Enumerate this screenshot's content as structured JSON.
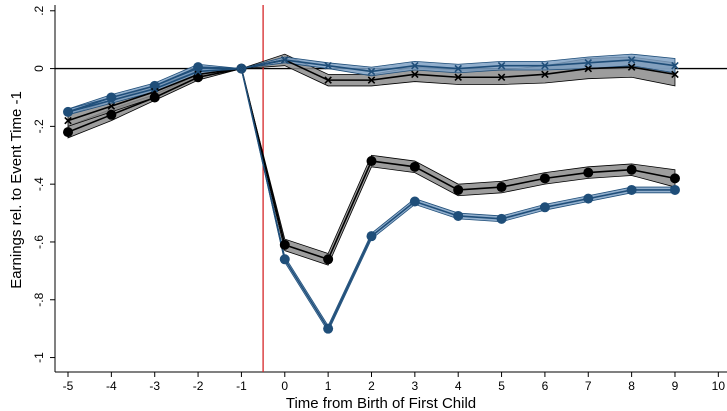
{
  "chart_data": {
    "type": "line",
    "title": "",
    "xlabel": "Time from Birth of First Child",
    "ylabel": "Earnings rel. to Event Time -1",
    "xlim": [
      -5.3,
      10.2
    ],
    "ylim": [
      -1.05,
      0.22
    ],
    "x_ticks": [
      -5,
      -4,
      -3,
      -2,
      -1,
      0,
      1,
      2,
      3,
      4,
      5,
      6,
      7,
      8,
      9,
      10
    ],
    "y_ticks": [
      0.2,
      0,
      -0.2,
      -0.4,
      -0.6,
      -0.8,
      -1
    ],
    "y_tick_labels": [
      ".2",
      "0",
      "-.2",
      "-.4",
      "-.6",
      "-.8",
      "-1"
    ],
    "grid": false,
    "legend": "none",
    "reference_lines": [
      {
        "orientation": "horizontal",
        "value": 0,
        "color": "#000000"
      },
      {
        "orientation": "vertical",
        "value": -0.5,
        "color": "#d62728"
      }
    ],
    "series": [
      {
        "marker": "circle",
        "color": "#000000",
        "band_color": "#8c8c8c",
        "x": [
          -5,
          -4,
          -3,
          -2,
          -1,
          0,
          1,
          2,
          3,
          4,
          5,
          6,
          7,
          8,
          9
        ],
        "y": [
          -0.22,
          -0.16,
          -0.1,
          -0.03,
          0,
          -0.61,
          -0.66,
          -0.32,
          -0.34,
          -0.42,
          -0.41,
          -0.38,
          -0.36,
          -0.35,
          -0.38
        ],
        "lower": [
          -0.24,
          -0.18,
          -0.11,
          -0.04,
          0,
          -0.63,
          -0.68,
          -0.34,
          -0.36,
          -0.44,
          -0.43,
          -0.4,
          -0.38,
          -0.37,
          -0.41
        ],
        "upper": [
          -0.2,
          -0.14,
          -0.09,
          -0.02,
          0,
          -0.59,
          -0.64,
          -0.3,
          -0.32,
          -0.4,
          -0.39,
          -0.36,
          -0.34,
          -0.33,
          -0.35
        ]
      },
      {
        "marker": "circle",
        "color": "#1f4e79",
        "band_color": "#7fa1c4",
        "x": [
          -5,
          -4,
          -3,
          -2,
          -1,
          0,
          1,
          2,
          3,
          4,
          5,
          6,
          7,
          8,
          9
        ],
        "y": [
          -0.15,
          -0.1,
          -0.06,
          0.005,
          0,
          -0.66,
          -0.9,
          -0.58,
          -0.46,
          -0.51,
          -0.52,
          -0.48,
          -0.45,
          -0.42,
          -0.42
        ],
        "lower": [
          -0.16,
          -0.11,
          -0.07,
          -0.005,
          0,
          -0.67,
          -0.91,
          -0.59,
          -0.47,
          -0.52,
          -0.53,
          -0.49,
          -0.46,
          -0.43,
          -0.43
        ],
        "upper": [
          -0.14,
          -0.09,
          -0.05,
          0.015,
          0,
          -0.65,
          -0.89,
          -0.57,
          -0.45,
          -0.5,
          -0.51,
          -0.47,
          -0.44,
          -0.41,
          -0.41
        ]
      },
      {
        "marker": "x",
        "color": "#000000",
        "band_color": "#8c8c8c",
        "x": [
          -5,
          -4,
          -3,
          -2,
          -1,
          0,
          1,
          2,
          3,
          4,
          5,
          6,
          7,
          8,
          9
        ],
        "y": [
          -0.18,
          -0.13,
          -0.08,
          -0.02,
          0,
          0.03,
          -0.04,
          -0.04,
          -0.02,
          -0.03,
          -0.03,
          -0.02,
          0.0,
          0.005,
          -0.02
        ],
        "lower": [
          -0.2,
          -0.15,
          -0.1,
          -0.03,
          0,
          0.01,
          -0.06,
          -0.06,
          -0.045,
          -0.055,
          -0.055,
          -0.05,
          -0.035,
          -0.03,
          -0.06
        ],
        "upper": [
          -0.16,
          -0.11,
          -0.06,
          -0.01,
          0,
          0.05,
          -0.02,
          -0.02,
          0.005,
          -0.005,
          -0.005,
          0.01,
          0.035,
          0.04,
          0.02
        ]
      },
      {
        "marker": "x",
        "color": "#1f4e79",
        "band_color": "#7fa1c4",
        "x": [
          -5,
          -4,
          -3,
          -2,
          -1,
          0,
          1,
          2,
          3,
          4,
          5,
          6,
          7,
          8,
          9
        ],
        "y": [
          -0.15,
          -0.11,
          -0.07,
          -0.01,
          0,
          0.03,
          0.01,
          -0.01,
          0.01,
          0.0,
          0.01,
          0.01,
          0.02,
          0.03,
          0.01
        ],
        "lower": [
          -0.16,
          -0.12,
          -0.08,
          -0.02,
          0,
          0.02,
          0.0,
          -0.025,
          -0.005,
          -0.015,
          -0.005,
          -0.005,
          0.0,
          0.01,
          -0.015
        ],
        "upper": [
          -0.14,
          -0.1,
          -0.06,
          0.0,
          0,
          0.04,
          0.02,
          0.005,
          0.025,
          0.015,
          0.025,
          0.025,
          0.04,
          0.05,
          0.035
        ]
      }
    ]
  }
}
